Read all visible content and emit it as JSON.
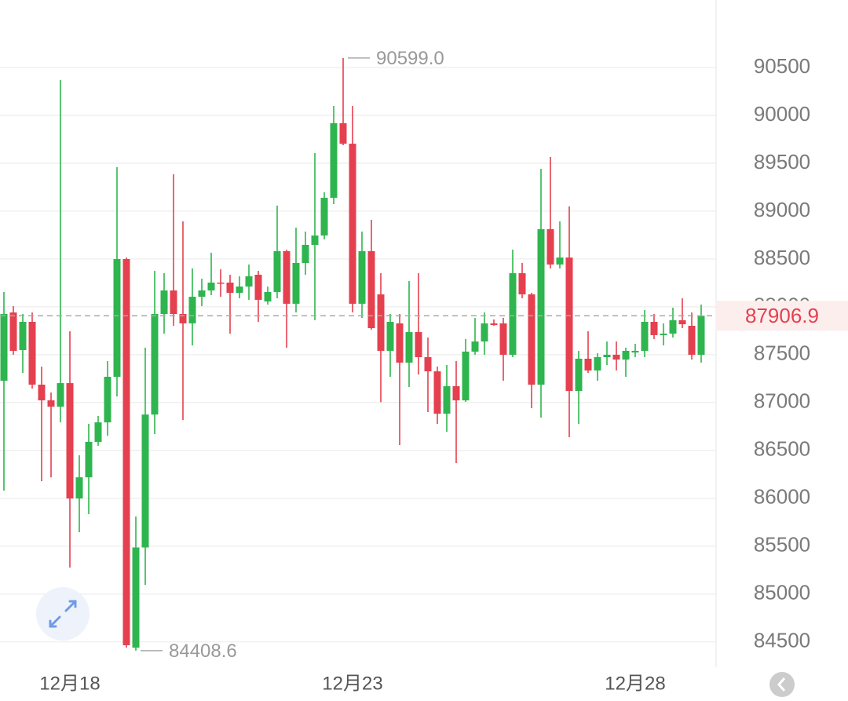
{
  "chart_data": {
    "type": "candlestick",
    "categories": [
      null,
      null,
      null,
      null,
      null,
      null,
      null,
      "12月18",
      null,
      null,
      null,
      null,
      null,
      null,
      null,
      null,
      null,
      null,
      null,
      null,
      null,
      null,
      null,
      null,
      null,
      null,
      null,
      null,
      null,
      null,
      null,
      null,
      null,
      null,
      null,
      null,
      null,
      "12月23",
      null,
      null,
      null,
      null,
      null,
      null,
      null,
      null,
      null,
      null,
      null,
      null,
      null,
      null,
      null,
      null,
      null,
      null,
      null,
      null,
      null,
      null,
      null,
      null,
      null,
      null,
      null,
      null,
      null,
      "12月28",
      null,
      null,
      null,
      null,
      null,
      null,
      null
    ],
    "open": [
      87228,
      87941,
      87548,
      87843,
      87187,
      87023,
      86957,
      87203,
      85998,
      86219,
      86589,
      86793,
      87269,
      88499,
      84440,
      85486,
      86875,
      87925,
      88171,
      87925,
      87827,
      88105,
      88171,
      88253,
      88253,
      88146,
      88212,
      88335,
      88056,
      88155,
      88581,
      88032,
      88458,
      88647,
      88745,
      89139,
      89918,
      89704,
      88032,
      88581,
      88130,
      87540,
      87827,
      87417,
      87736,
      87474,
      87326,
      86884,
      87171,
      87023,
      87532,
      87638,
      87827,
      87827,
      87499,
      88351,
      88130,
      87187,
      88811,
      88442,
      88515,
      87121,
      87458,
      87335,
      87474,
      87499,
      87449,
      87523,
      87540,
      87843,
      87704,
      87720,
      87860,
      87802,
      87499
    ],
    "high": [
      88155,
      88007,
      87925,
      87941,
      87376,
      87105,
      90369,
      87745,
      86449,
      86777,
      86859,
      87433,
      89458,
      88515,
      85810,
      87573,
      88376,
      88351,
      89385,
      88893,
      88401,
      88294,
      88565,
      88392,
      88335,
      88319,
      88442,
      88376,
      88212,
      89057,
      88597,
      88827,
      88786,
      89606,
      89196,
      90098,
      90599,
      90098,
      88786,
      88909,
      88351,
      87925,
      87925,
      88269,
      88351,
      87679,
      87376,
      87392,
      87433,
      87663,
      87884,
      87941,
      87868,
      87884,
      88597,
      88458,
      88146,
      89442,
      89565,
      88893,
      89049,
      87540,
      87745,
      87515,
      87638,
      87638,
      87573,
      87614,
      87966,
      87925,
      87827,
      87991,
      88089,
      87941,
      88023
    ],
    "low": [
      86080,
      87499,
      87310,
      87146,
      86178,
      86219,
      86793,
      85276,
      85645,
      85834,
      86548,
      86654,
      87064,
      84440,
      84408.6,
      85096,
      86670,
      87720,
      87802,
      86818,
      87597,
      88007,
      88122,
      88105,
      87720,
      88089,
      88073,
      87843,
      88023,
      88089,
      87573,
      87941,
      88335,
      87860,
      88704,
      89073,
      89688,
      87941,
      87884,
      87761,
      87004,
      87269,
      86556,
      87162,
      87294,
      86900,
      86777,
      86695,
      86367,
      87007,
      87499,
      87499,
      87802,
      87228,
      87474,
      88089,
      86941,
      86843,
      88401,
      88401,
      86638,
      86777,
      87310,
      87228,
      87392,
      87335,
      87269,
      87474,
      87474,
      87663,
      87597,
      87679,
      87777,
      87449,
      87417
    ],
    "close": [
      87925,
      87540,
      87843,
      87187,
      87023,
      86957,
      87203,
      85998,
      86219,
      86589,
      86793,
      87269,
      88499,
      84465,
      85486,
      86875,
      87925,
      88171,
      87925,
      87827,
      88105,
      88171,
      88253,
      88245,
      88146,
      88212,
      88319,
      88073,
      88155,
      88581,
      88032,
      88458,
      88647,
      88745,
      89139,
      89918,
      89704,
      88032,
      88581,
      87777,
      87540,
      87843,
      87417,
      87736,
      87474,
      87326,
      86884,
      87171,
      87023,
      87532,
      87638,
      87827,
      87810,
      87499,
      88351,
      88130,
      87187,
      88811,
      88442,
      88515,
      87121,
      87458,
      87335,
      87474,
      87499,
      87449,
      87540,
      87540,
      87843,
      87704,
      87720,
      87860,
      87818,
      87499,
      87906.9
    ],
    "up_color": "#2fb54f",
    "down_color": "#e5404f",
    "ylim": [
      84235,
      91205
    ],
    "yticks": [
      84500,
      85000,
      85500,
      86000,
      86500,
      87000,
      87500,
      88000,
      88500,
      89000,
      89500,
      90000,
      90500
    ],
    "grid": true,
    "high_label": {
      "value": 90599,
      "label": "90599.0"
    },
    "low_label": 84408.6,
    "last_price": 87906.9
  }
}
